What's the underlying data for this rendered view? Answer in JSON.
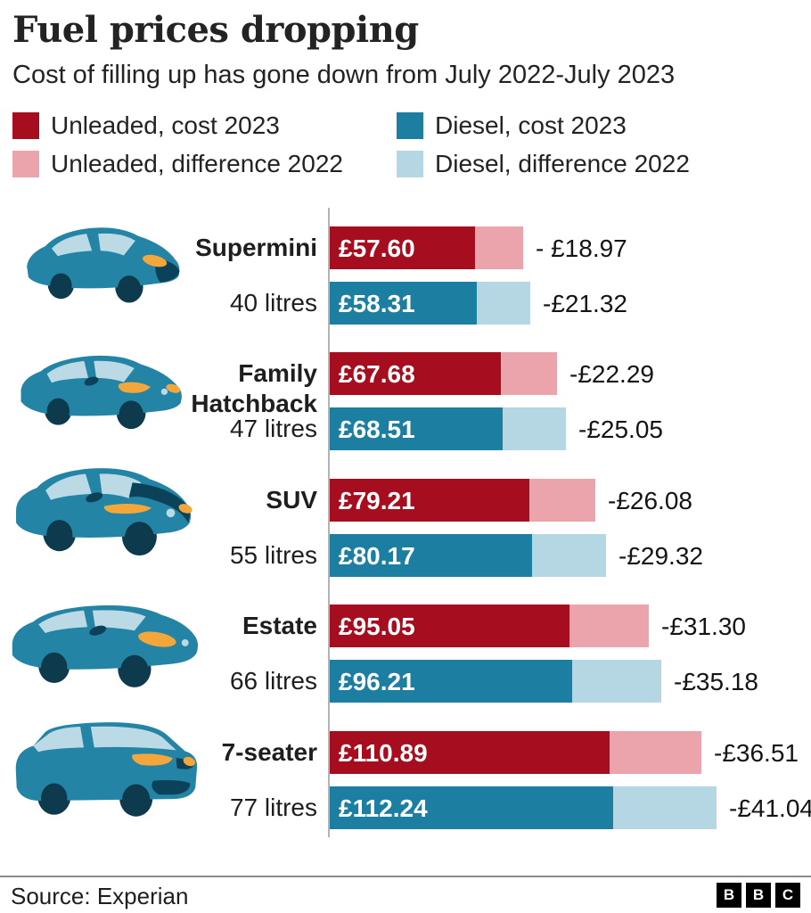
{
  "header": {
    "title": "Fuel prices dropping",
    "subtitle": "Cost of filling up has gone down from July 2022-July 2023"
  },
  "legend": [
    {
      "label": "Unleaded, cost 2023",
      "color": "#a60d1e"
    },
    {
      "label": "Diesel, cost 2023",
      "color": "#1c7ea1"
    },
    {
      "label": "Unleaded, difference 2022",
      "color": "#eba4ac"
    },
    {
      "label": "Diesel, difference 2022",
      "color": "#b4d7e3"
    }
  ],
  "chart_data": {
    "type": "bar",
    "orientation": "horizontal",
    "unit": "GBP",
    "x_range": [
      0,
      155
    ],
    "grid": false,
    "legend_position": "top",
    "colors": {
      "unleaded": "#a60d1e",
      "unleaded_diff": "#eba4ac",
      "diesel": "#1c7ea1",
      "diesel_diff": "#b4d7e3"
    },
    "groups": [
      {
        "name": "Supermini",
        "litres": "40 litres",
        "unleaded": {
          "cost": 57.6,
          "cost_label": "£57.60",
          "difference": 18.97,
          "difference_label": "- £18.97"
        },
        "diesel": {
          "cost": 58.31,
          "cost_label": "£58.31",
          "difference": 21.32,
          "difference_label": "-£21.32"
        }
      },
      {
        "name": "Family Hatchback",
        "litres": "47 litres",
        "unleaded": {
          "cost": 67.68,
          "cost_label": "£67.68",
          "difference": 22.29,
          "difference_label": "-£22.29"
        },
        "diesel": {
          "cost": 68.51,
          "cost_label": "£68.51",
          "difference": 25.05,
          "difference_label": "-£25.05"
        }
      },
      {
        "name": "SUV",
        "litres": "55 litres",
        "unleaded": {
          "cost": 79.21,
          "cost_label": "£79.21",
          "difference": 26.08,
          "difference_label": "-£26.08"
        },
        "diesel": {
          "cost": 80.17,
          "cost_label": "£80.17",
          "difference": 29.32,
          "difference_label": "-£29.32"
        }
      },
      {
        "name": "Estate",
        "litres": "66 litres",
        "unleaded": {
          "cost": 95.05,
          "cost_label": "£95.05",
          "difference": 31.3,
          "difference_label": "-£31.30"
        },
        "diesel": {
          "cost": 96.21,
          "cost_label": "£96.21",
          "difference": 35.18,
          "difference_label": "-£35.18"
        }
      },
      {
        "name": "7-seater",
        "litres": "77 litres",
        "unleaded": {
          "cost": 110.89,
          "cost_label": "£110.89",
          "difference": 36.51,
          "difference_label": "-£36.51"
        },
        "diesel": {
          "cost": 112.24,
          "cost_label": "£112.24",
          "difference": 41.04,
          "difference_label": "-£41.04"
        }
      }
    ]
  },
  "palette": {
    "car_body": "#2484a6",
    "car_dark": "#0b4259",
    "car_window": "#bcd9e6",
    "car_wheel": "#0e3a4d",
    "car_light": "#f3a73b",
    "axis_line": "#b3b3b3"
  },
  "footer": {
    "source": "Source: Experian",
    "logo": [
      "B",
      "B",
      "C"
    ]
  }
}
